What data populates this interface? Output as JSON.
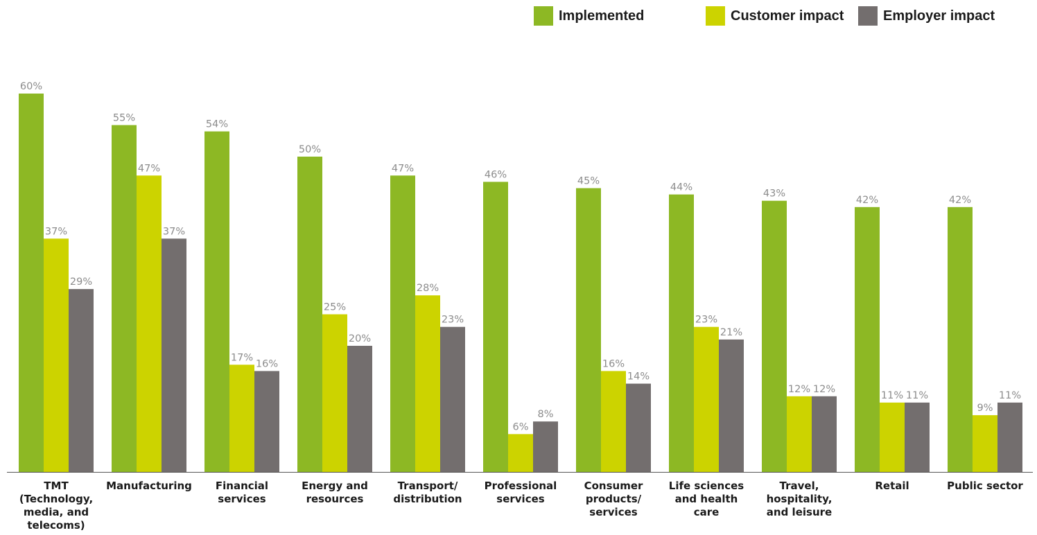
{
  "legend": {
    "implemented": "Implemented",
    "customer": "Customer impact",
    "employer": "Employer impact"
  },
  "colors": {
    "implemented": "#8db824",
    "customer": "#ccd300",
    "employer": "#736e6e",
    "axis": "#555555",
    "value_label": "#8c8c8c"
  },
  "chart_data": {
    "type": "bar",
    "categories": [
      "TMT (Technology, media, and telecoms)",
      "Manufacturing",
      "Financial services",
      "Energy and resources",
      "Transport/ distribution",
      "Professional services",
      "Consumer products/ services",
      "Life sciences and health care",
      "Travel, hospitality, and leisure",
      "Retail",
      "Public sector"
    ],
    "category_lines": [
      [
        "TMT",
        "(Technology,",
        "media, and",
        "telecoms)"
      ],
      [
        "Manufacturing"
      ],
      [
        "Financial",
        "services"
      ],
      [
        "Energy and",
        "resources"
      ],
      [
        "Transport/",
        "distribution"
      ],
      [
        "Professional",
        "services"
      ],
      [
        "Consumer",
        "products/",
        "services"
      ],
      [
        "Life sciences",
        "and health",
        "care"
      ],
      [
        "Travel,",
        "hospitality,",
        "and leisure"
      ],
      [
        "Retail"
      ],
      [
        "Public sector"
      ]
    ],
    "series": [
      {
        "name": "Implemented",
        "values": [
          60,
          55,
          54,
          50,
          47,
          46,
          45,
          44,
          43,
          42,
          42
        ]
      },
      {
        "name": "Customer impact",
        "values": [
          37,
          47,
          17,
          25,
          28,
          6,
          16,
          23,
          12,
          11,
          9
        ]
      },
      {
        "name": "Employer impact",
        "values": [
          29,
          37,
          16,
          20,
          23,
          8,
          14,
          21,
          12,
          11,
          11
        ]
      }
    ],
    "value_suffix": "%",
    "ylim": [
      0,
      60
    ],
    "grid": false,
    "legend_position": "top-right"
  }
}
